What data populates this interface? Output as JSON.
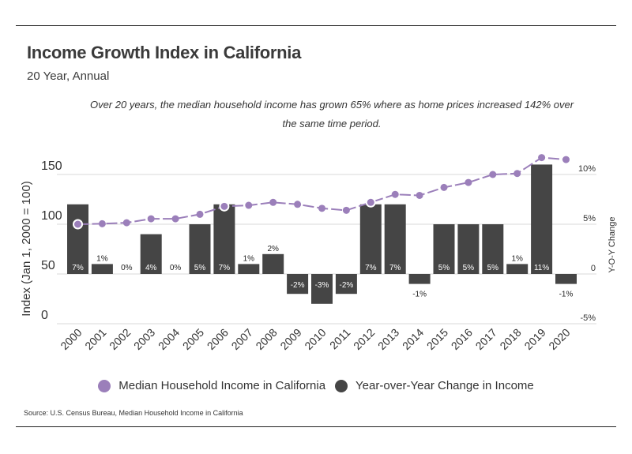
{
  "header": {
    "title": "Income Growth Index in California",
    "subtitle": "20 Year, Annual",
    "annotation": "Over 20 years, the median household income has grown 65% where as home prices increased 142% over the same time period."
  },
  "footer": {
    "source": "Source:  U.S. Census Bureau, Median Household Income in California"
  },
  "colors": {
    "line": "#9b7fba",
    "bar": "#454545",
    "grid": "#d9d9d9",
    "text": "#333333"
  },
  "chart_data": {
    "type": "bar+line",
    "title": "Income Growth Index in California",
    "subtitle": "20 Year, Annual",
    "categories": [
      "2000",
      "2001",
      "2002",
      "2003",
      "2004",
      "2005",
      "2006",
      "2007",
      "2008",
      "2009",
      "2010",
      "2011",
      "2012",
      "2013",
      "2014",
      "2015",
      "2016",
      "2017",
      "2018",
      "2019",
      "2020"
    ],
    "series": [
      {
        "name": "Median Household Income in California",
        "type": "line",
        "axis": "left",
        "values": [
          100,
          100.5,
          101.5,
          105.5,
          105.5,
          110,
          118,
          119,
          122,
          120,
          116,
          114,
          122,
          130,
          129,
          137,
          142,
          150,
          151,
          167,
          165
        ]
      },
      {
        "name": "Year-over-Year Change in Income",
        "type": "bar",
        "axis": "right",
        "values": [
          7,
          1,
          0,
          4,
          0,
          5,
          7,
          1,
          2,
          -2,
          -3,
          -2,
          7,
          7,
          -1,
          5,
          5,
          5,
          1,
          11,
          -1
        ],
        "labels": [
          "7%",
          "1%",
          "0%",
          "4%",
          "0%",
          "5%",
          "7%",
          "1%",
          "2%",
          "-2%",
          "-3%",
          "-2%",
          "7%",
          "7%",
          "-1%",
          "5%",
          "5%",
          "5%",
          "1%",
          "11%",
          "-1%"
        ]
      }
    ],
    "ylabel": "Index (Jan 1, 2000 = 100)",
    "ylim": [
      0,
      150
    ],
    "yticks": [
      "0",
      "50",
      "100",
      "150"
    ],
    "y2label": "Y-O-Y Change",
    "y2lim": [
      -5,
      10
    ],
    "y2ticks": [
      "-5%",
      "0",
      "5%",
      "10%"
    ],
    "grid": true,
    "legend": "bottom-center"
  }
}
